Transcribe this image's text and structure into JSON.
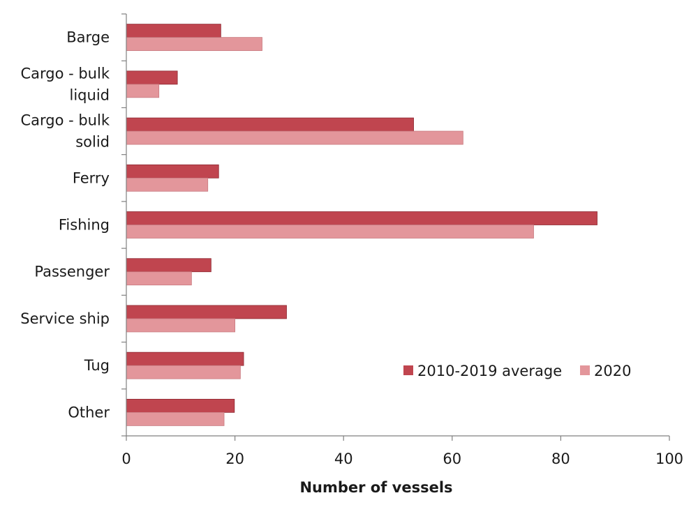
{
  "chart_data": {
    "type": "bar",
    "orientation": "horizontal",
    "categories": [
      [
        "Barge"
      ],
      [
        "Cargo - bulk",
        "liquid"
      ],
      [
        "Cargo - bulk",
        "solid"
      ],
      [
        "Ferry"
      ],
      [
        "Fishing"
      ],
      [
        "Passenger"
      ],
      [
        "Service ship"
      ],
      [
        "Tug"
      ],
      [
        "Other"
      ]
    ],
    "series": [
      {
        "name": "2010-2019 average",
        "color": "#c0454f",
        "values": [
          17.4,
          9.4,
          52.9,
          17.0,
          86.7,
          15.6,
          29.5,
          21.6,
          19.9
        ]
      },
      {
        "name": "2020",
        "color": "#e3969b",
        "values": [
          25,
          6,
          62,
          15,
          75,
          12,
          20,
          21,
          18
        ]
      }
    ],
    "xlim": [
      0,
      100
    ],
    "xticks": [
      0,
      20,
      40,
      60,
      80,
      100
    ],
    "xlabel": "Number of vessels",
    "ylabel": "",
    "title": "",
    "grid": false,
    "legend_position": "bottom-right"
  }
}
